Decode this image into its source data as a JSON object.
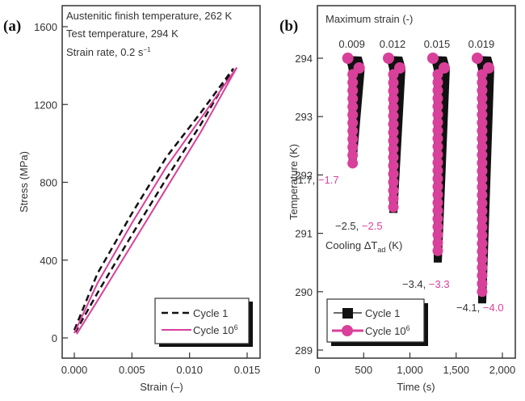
{
  "colors": {
    "cycle1": "#111111",
    "cycle1e6": "#d9409a",
    "axis": "#333333"
  },
  "chart_data": [
    {
      "panel_label": "(a)",
      "type": "line",
      "title": "",
      "xlabel": "Strain (–)",
      "ylabel": "Stress (MPa)",
      "xlim": [
        -0.001,
        0.016
      ],
      "ylim": [
        -100,
        1650
      ],
      "xticks": [
        0.0,
        0.005,
        0.01,
        0.015
      ],
      "xtick_labels": [
        "0.000",
        "0.005",
        "0.010",
        "0.015"
      ],
      "yticks": [
        0,
        400,
        800,
        1200,
        1600
      ],
      "ytick_labels": [
        "0",
        "400",
        "800",
        "1200",
        "1600"
      ],
      "annotations": [
        "Austenitic finish temperature, 262 K",
        "Test temperature, 294 K",
        "Strain rate, 0.2 s",
        "−1"
      ],
      "legend": {
        "placement": "bottom-right",
        "entries": [
          "Cycle 1",
          "Cycle 10",
          "6"
        ]
      },
      "series": [
        {
          "name": "Cycle 1",
          "style": "dashed",
          "loading": [
            [
              0.0,
              40
            ],
            [
              0.002,
              330
            ],
            [
              0.005,
              640
            ],
            [
              0.008,
              930
            ],
            [
              0.011,
              1160
            ],
            [
              0.0138,
              1385
            ]
          ],
          "unloading": [
            [
              0.0138,
              1385
            ],
            [
              0.011,
              1100
            ],
            [
              0.008,
              820
            ],
            [
              0.005,
              530
            ],
            [
              0.002,
              230
            ],
            [
              0.0001,
              30
            ]
          ]
        },
        {
          "name": "Cycle 10^6",
          "style": "solid",
          "loading": [
            [
              0.0,
              25
            ],
            [
              0.002,
              280
            ],
            [
              0.005,
              590
            ],
            [
              0.008,
              880
            ],
            [
              0.011,
              1130
            ],
            [
              0.0141,
              1390
            ]
          ],
          "unloading": [
            [
              0.0141,
              1390
            ],
            [
              0.011,
              1060
            ],
            [
              0.008,
              770
            ],
            [
              0.005,
              480
            ],
            [
              0.002,
              190
            ],
            [
              0.0002,
              20
            ]
          ]
        }
      ]
    },
    {
      "panel_label": "(b)",
      "type": "scatter",
      "title": "Maximum strain (-)",
      "xlabel": "Time (s)",
      "ylabel": "Temperature (K)",
      "xlim": [
        0,
        2100
      ],
      "ylim": [
        288.85,
        294.9
      ],
      "xticks": [
        0,
        500,
        1000,
        1500,
        2000
      ],
      "xtick_labels": [
        "0",
        "500",
        "1,000",
        "1,500",
        "2,000"
      ],
      "yticks": [
        289,
        290,
        291,
        292,
        293,
        294
      ],
      "ytick_labels": [
        "289",
        "290",
        "291",
        "292",
        "293",
        "294"
      ],
      "group_labels": [
        "0.009",
        "0.012",
        "0.015",
        "0.019"
      ],
      "annotation": "Cooling ΔT",
      "annotation_sub": "ad",
      "annotation_unit": " (K)",
      "legend": {
        "placement": "bottom-left",
        "entries": [
          "Cycle 1",
          "Cycle 10",
          "6"
        ]
      },
      "groups": [
        {
          "max_strain": 0.009,
          "t0": 320,
          "dT_cycle1": "−1.7",
          "dT_cycle1e6": "−1.7",
          "min_c1": 292.25,
          "min_c6": 292.2
        },
        {
          "max_strain": 0.012,
          "t0": 760,
          "dT_cycle1": "−2.5",
          "dT_cycle1e6": "−2.5",
          "min_c1": 291.35,
          "min_c6": 291.45
        },
        {
          "max_strain": 0.015,
          "t0": 1240,
          "dT_cycle1": "−3.4",
          "dT_cycle1e6": "−3.3",
          "min_c1": 290.5,
          "min_c6": 290.7
        },
        {
          "max_strain": 0.019,
          "t0": 1720,
          "dT_cycle1": "−4.1",
          "dT_cycle1e6": "−4.0",
          "min_c1": 289.8,
          "min_c6": 290.0
        }
      ],
      "start_temperature": 294.0
    }
  ]
}
